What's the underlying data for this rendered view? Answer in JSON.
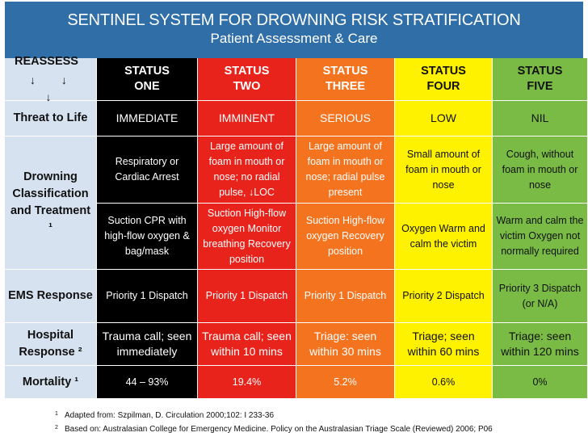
{
  "title": {
    "line1": "SENTINEL SYSTEM FOR DROWNING RISK STRATIFICATION",
    "line2": "Patient Assessment & Care"
  },
  "header": {
    "reassess": "REASSESS",
    "reassess_arrows": "↓ ↓ ↓",
    "statuses": [
      {
        "line1": "STATUS",
        "line2": "ONE"
      },
      {
        "line1": "STATUS",
        "line2": "TWO"
      },
      {
        "line1": "STATUS",
        "line2": "THREE"
      },
      {
        "line1": "STATUS",
        "line2": "FOUR"
      },
      {
        "line1": "STATUS",
        "line2": "FIVE"
      }
    ]
  },
  "rows": {
    "threat": {
      "label": "Threat to Life",
      "values": [
        "IMMEDIATE",
        "IMMINENT",
        "SERIOUS",
        "LOW",
        "NIL"
      ]
    },
    "classification": {
      "label": "Drowning Classification and Treatment ¹",
      "values": [
        "Respiratory or Cardiac Arrest",
        "Large amount of foam in mouth or nose; no radial pulse, ↓LOC",
        "Large amount of foam in mouth or nose; radial pulse present",
        "Small amount of foam in mouth or nose",
        "Cough, without foam in mouth or nose"
      ]
    },
    "treatment": {
      "values": [
        "Suction CPR with high-flow oxygen & bag/mask",
        "Suction High-flow oxygen Monitor breathing Recovery position",
        "Suction High-flow oxygen Recovery position",
        "Oxygen Warm and calm the victim",
        "Warm and calm the victim Oxygen not normally required"
      ]
    },
    "ems": {
      "label": "EMS Response",
      "values": [
        "Priority 1 Dispatch",
        "Priority 1 Dispatch",
        "Priority 1 Dispatch",
        "Priority 2 Dispatch",
        "Priority 3 Dispatch (or N/A)"
      ]
    },
    "hospital": {
      "label": "Hospital Response ²",
      "values": [
        "Trauma call; seen immediately",
        "Trauma call; seen within 10 mins",
        "Triage: seen within 30 mins",
        "Triage; seen within 60 mins",
        "Triage: seen within 120 mins"
      ]
    },
    "mortality": {
      "label": "Mortality ¹",
      "values": [
        "44 – 93%",
        "19.4%",
        "5.2%",
        "0.6%",
        "0%"
      ]
    }
  },
  "footnotes": [
    {
      "mark": "1",
      "text": "Adapted from: Szpilman, D. Circulation 2000;102: I 233-36"
    },
    {
      "mark": "2",
      "text": "Based on: Australasian College for Emergency Medicine. Policy on the Australasian Triage Scale (Reviewed) 2006; P06"
    }
  ],
  "colors": {
    "title_bg": "#2f6ea6",
    "label_bg": "#d7e2f1",
    "status_one": "#000000",
    "status_two": "#e8231b",
    "status_three": "#f4731f",
    "status_four": "#fff200",
    "status_five": "#79bb45"
  }
}
